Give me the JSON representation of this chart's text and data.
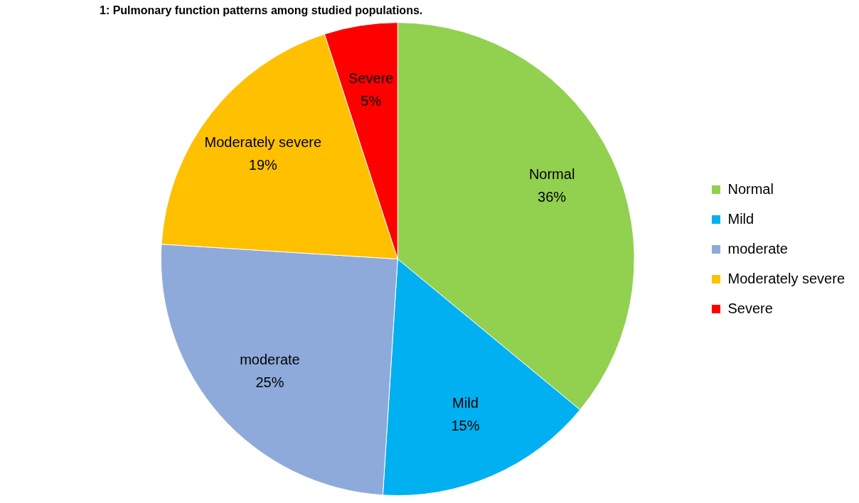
{
  "chart_data": {
    "type": "pie",
    "title": "1: Pulmonary function patterns among studied populations.",
    "categories": [
      "Normal",
      "Mild",
      "moderate",
      "Moderately severe",
      "Severe"
    ],
    "values": [
      36,
      15,
      25,
      19,
      5
    ],
    "colors": [
      "#92d050",
      "#00b0f0",
      "#8eaadb",
      "#ffc000",
      "#ff0000"
    ],
    "value_labels": [
      "36%",
      "15%",
      "25%",
      "19%",
      "5%"
    ],
    "legend": "right"
  }
}
